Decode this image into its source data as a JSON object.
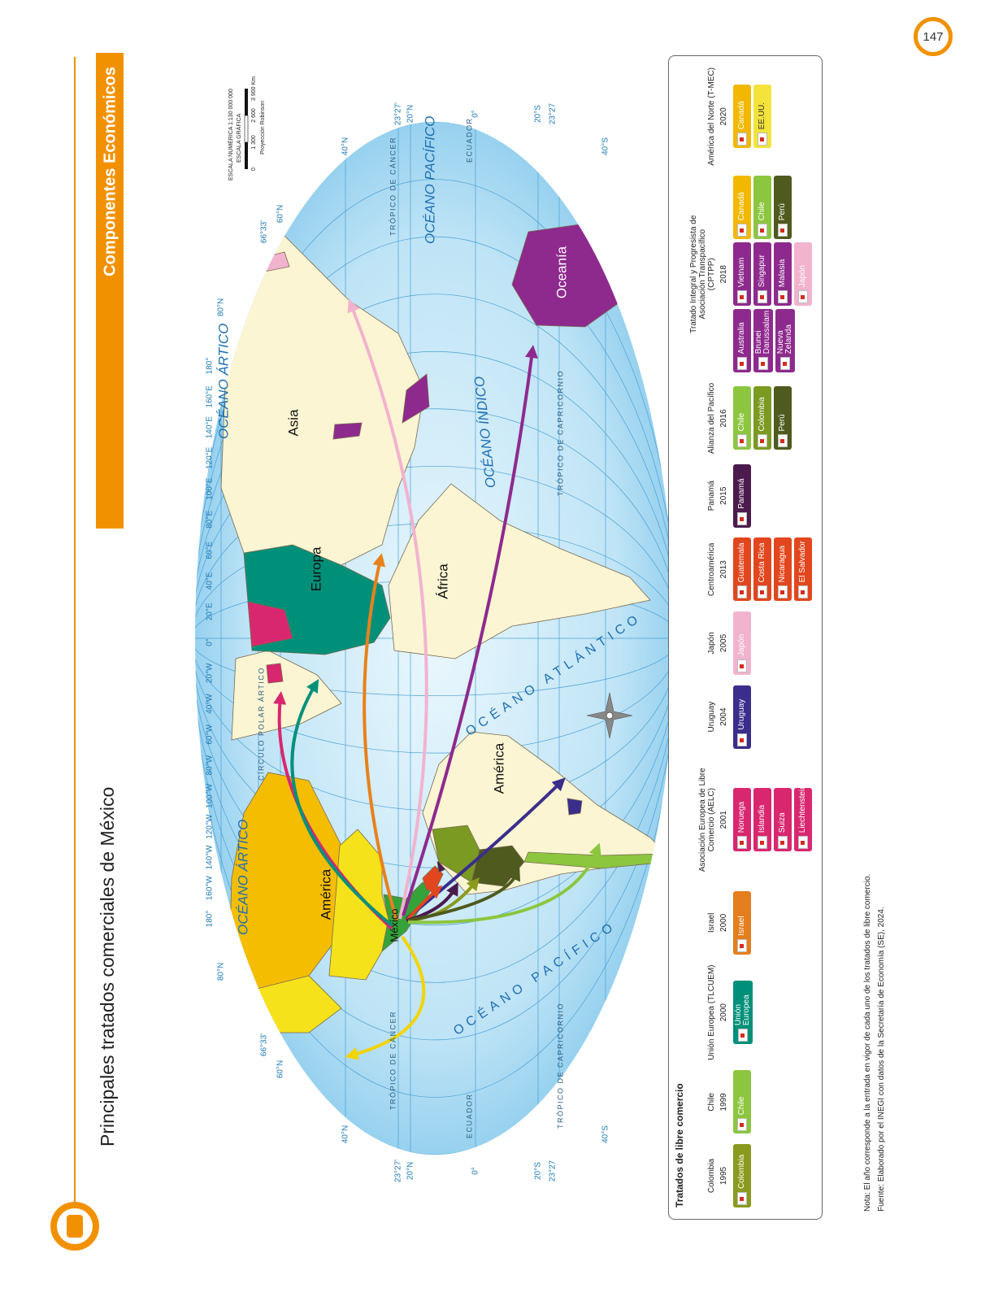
{
  "page_number": "147",
  "header": {
    "section": "Componentes Económicos",
    "title": "Principales tratados comerciales de México"
  },
  "map": {
    "longitude_labels": [
      "180°",
      "160°W",
      "140°W",
      "120°W",
      "100°W",
      "80°W",
      "60°W",
      "40°W",
      "20°W",
      "0°",
      "20°E",
      "40°E",
      "60°E",
      "80°E",
      "100°E",
      "120°E",
      "140°E",
      "160°E",
      "180°"
    ],
    "latitude_labels": [
      "80°N",
      "66°33'",
      "60°N",
      "40°N",
      "23°27'",
      "20°N",
      "0°",
      "20°S",
      "23°27",
      "40°S"
    ],
    "line_labels": {
      "arctic_circle": "CÍRCULO POLAR ÁRTICO",
      "cancer": "TRÓPICO DE CÁNCER",
      "equator": "ECUADOR",
      "capricorn": "TRÓPICO DE CAPRICORNIO"
    },
    "oceans": {
      "arctic": "OCÉANO ÁRTICO",
      "pacific": "OCÉANO PACÍFICO",
      "atlantic": "OCÉANO ATLÁNTICO",
      "indian": "OCÉANO ÍNDICO"
    },
    "regions": {
      "america": "América",
      "europe": "Europa",
      "africa": "África",
      "asia": "Asia",
      "oceania": "Oceanía",
      "mexico": "México"
    },
    "scale": {
      "numeric": "ESCALA NUMÉRICA 1:130 000 000",
      "graphic": "ESCALA GRÁFICA",
      "ticks": [
        "0",
        "1 300",
        "2 600",
        "3 900 Km"
      ],
      "projection": "Proyección Robinson"
    }
  },
  "legend": {
    "title": "Tratados de libre comercio",
    "treaties": [
      {
        "name": "Colombia",
        "year": 1995,
        "columns": [
          [
            {
              "country": "Colombia",
              "color": "#8a9a1e"
            }
          ]
        ]
      },
      {
        "name": "Chile",
        "year": 1999,
        "columns": [
          [
            {
              "country": "Chile",
              "color": "#8cc63f"
            }
          ]
        ]
      },
      {
        "name": "Unión Europea (TLCUEM)",
        "year": 2000,
        "columns": [
          [
            {
              "country": "Unión Europea",
              "color": "#00907a"
            }
          ]
        ]
      },
      {
        "name": "Israel",
        "year": 2000,
        "columns": [
          [
            {
              "country": "Israel",
              "color": "#e57e1e"
            }
          ]
        ]
      },
      {
        "name": "Asociación Europea de Libre Comercio (AELC)",
        "year": 2001,
        "columns": [
          [
            {
              "country": "Noruega",
              "color": "#d9276f"
            },
            {
              "country": "Islandia",
              "color": "#d9276f"
            },
            {
              "country": "Suiza",
              "color": "#d9276f"
            },
            {
              "country": "Liechtenstein",
              "color": "#d9276f"
            }
          ]
        ]
      },
      {
        "name": "Uruguay",
        "year": 2004,
        "columns": [
          [
            {
              "country": "Uruguay",
              "color": "#3a2d8c"
            }
          ]
        ]
      },
      {
        "name": "Japón",
        "year": 2005,
        "columns": [
          [
            {
              "country": "Japón",
              "color": "#f2b3cf"
            }
          ]
        ]
      },
      {
        "name": "Centroamérica",
        "year": 2013,
        "columns": [
          [
            {
              "country": "Guatemala",
              "color": "#e2461e"
            },
            {
              "country": "Costa Rica",
              "color": "#e2461e"
            },
            {
              "country": "Nicaragua",
              "color": "#e2461e"
            },
            {
              "country": "El Salvador",
              "color": "#e2461e"
            }
          ]
        ]
      },
      {
        "name": "Panamá",
        "year": 2015,
        "columns": [
          [
            {
              "country": "Panamá",
              "color": "#4b1b4d"
            }
          ]
        ]
      },
      {
        "name": "Alianza del Pacífico",
        "year": 2016,
        "columns": [
          [
            {
              "country": "Chile",
              "color": "#8cc63f"
            },
            {
              "country": "Colombia",
              "color": "#7a9a22"
            },
            {
              "country": "Perú",
              "color": "#4f5a1e"
            }
          ]
        ]
      },
      {
        "name": "Tratado Integral y Progresista de Asociación Transpacífico (CPTPP)",
        "year": 2018,
        "columns": [
          [
            {
              "country": "Australia",
              "color": "#8e2a8e"
            },
            {
              "country": "Brunei Darussalam",
              "color": "#8e2a8e"
            },
            {
              "country": "Nueva Zelanda",
              "color": "#8e2a8e"
            }
          ],
          [
            {
              "country": "Vietnam",
              "color": "#8e2a8e"
            },
            {
              "country": "Singapur",
              "color": "#8e2a8e"
            },
            {
              "country": "Malasia",
              "color": "#8e2a8e"
            },
            {
              "country": "Japón",
              "color": "#f2b3cf"
            }
          ],
          [
            {
              "country": "Canadá",
              "color": "#f2b800"
            },
            {
              "country": "Chile",
              "color": "#8cc63f"
            },
            {
              "country": "Perú",
              "color": "#4f5a1e"
            }
          ]
        ]
      },
      {
        "name": "América del Norte (T-MEC)",
        "year": 2020,
        "columns": [
          [
            {
              "country": "Canadá",
              "color": "#f2b800"
            },
            {
              "country": "EE.UU.",
              "color": "#f3e33a"
            }
          ]
        ]
      }
    ]
  },
  "note": "Nota: El año corresponde a la entrada en vigor de cada uno de los tratados de libre comercio.",
  "source": "Fuente: Elaborado por el INEGI con datos de la Secretaría de Economía (SE), 2024."
}
